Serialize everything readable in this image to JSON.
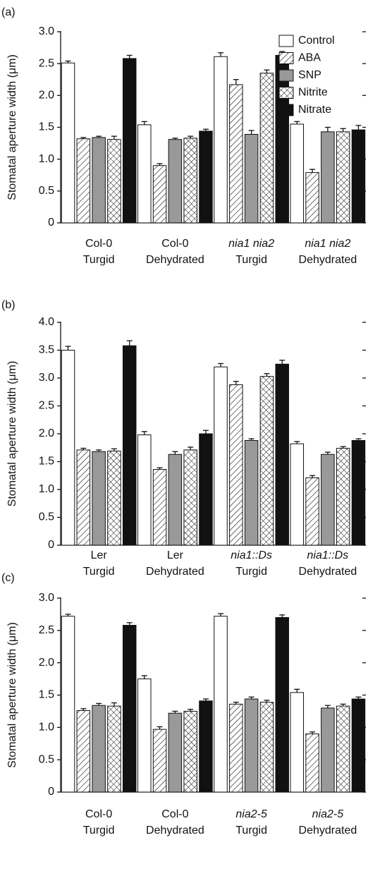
{
  "chart_data": [
    {
      "type": "bar",
      "panel_label": "(a)",
      "y_label": "Stomatal aperture width (μm)",
      "categories": [
        [
          "Col-0",
          "Turgid"
        ],
        [
          "Col-0",
          "Dehydrated"
        ],
        [
          "nia1 nia2",
          "Turgid"
        ],
        [
          "nia1 nia2",
          "Dehydrated"
        ]
      ],
      "ylim": [
        0,
        3
      ],
      "yticks": [
        0,
        0.5,
        {
          "value": 1,
          "label": "1.0"
        },
        1.5,
        {
          "value": 2,
          "label": "2.0"
        },
        2.5,
        {
          "value": 3,
          "label": "3.0"
        }
      ],
      "legend": "upper right",
      "series": [
        {
          "name": "Control",
          "color": "#ffffff",
          "pattern": "solid",
          "values": [
            2.51,
            1.54,
            2.61,
            1.55
          ],
          "errors": [
            0.03,
            0.05,
            0.06,
            0.04
          ]
        },
        {
          "name": "ABA",
          "color": "#ffffff",
          "pattern": "hatch",
          "values": [
            1.32,
            0.9,
            2.17,
            0.79
          ],
          "errors": [
            0.02,
            0.03,
            0.08,
            0.05
          ]
        },
        {
          "name": "SNP",
          "color": "#999999",
          "pattern": "solid",
          "values": [
            1.34,
            1.31,
            1.39,
            1.43
          ],
          "errors": [
            0.02,
            0.02,
            0.06,
            0.07
          ]
        },
        {
          "name": "Nitrite",
          "color": "#ffffff",
          "pattern": "cross",
          "values": [
            1.31,
            1.33,
            2.35,
            1.43
          ],
          "errors": [
            0.05,
            0.03,
            0.05,
            0.05
          ]
        },
        {
          "name": "Nitrate",
          "color": "#111111",
          "pattern": "solid",
          "values": [
            2.58,
            1.44,
            2.63,
            1.46
          ],
          "errors": [
            0.05,
            0.03,
            0.06,
            0.07
          ]
        }
      ]
    },
    {
      "type": "bar",
      "panel_label": "(b)",
      "y_label": "Stomatal aperture width (μm)",
      "categories": [
        [
          "Ler",
          "Turgid"
        ],
        [
          "Ler",
          "Dehydrated"
        ],
        [
          "nia1::Ds",
          "Turgid"
        ],
        [
          "nia1::Ds",
          "Dehydrated"
        ]
      ],
      "ylim": [
        0,
        4
      ],
      "yticks": [
        0,
        0.5,
        {
          "value": 1,
          "label": "1.0"
        },
        1.5,
        {
          "value": 2,
          "label": "2.0"
        },
        2.5,
        {
          "value": 3,
          "label": "3.0"
        },
        3.5,
        {
          "value": 4,
          "label": "4.0"
        }
      ],
      "series": [
        {
          "color": "#ffffff",
          "pattern": "solid",
          "values": [
            3.5,
            1.98,
            3.2,
            1.82
          ],
          "errors": [
            0.07,
            0.06,
            0.06,
            0.04
          ]
        },
        {
          "color": "#ffffff",
          "pattern": "hatch",
          "values": [
            1.71,
            1.36,
            2.88,
            1.21
          ],
          "errors": [
            0.03,
            0.03,
            0.06,
            0.04
          ]
        },
        {
          "color": "#999999",
          "pattern": "solid",
          "values": [
            1.68,
            1.63,
            1.88,
            1.63
          ],
          "errors": [
            0.03,
            0.05,
            0.03,
            0.04
          ]
        },
        {
          "color": "#ffffff",
          "pattern": "cross",
          "values": [
            1.69,
            1.71,
            3.03,
            1.74
          ],
          "errors": [
            0.04,
            0.05,
            0.05,
            0.03
          ]
        },
        {
          "color": "#111111",
          "pattern": "solid",
          "values": [
            3.58,
            2.0,
            3.25,
            1.88
          ],
          "errors": [
            0.09,
            0.06,
            0.07,
            0.03
          ]
        }
      ]
    },
    {
      "type": "bar",
      "panel_label": "(c)",
      "y_label": "Stomatal aperture width (μm)",
      "categories": [
        [
          "Col-0",
          "Turgid"
        ],
        [
          "Col-0",
          "Dehydrated"
        ],
        [
          "nia2-5",
          "Turgid"
        ],
        [
          "nia2-5",
          "Dehydrated"
        ]
      ],
      "ylim": [
        0,
        3
      ],
      "yticks": [
        0,
        0.5,
        {
          "value": 1,
          "label": "1.0"
        },
        1.5,
        {
          "value": 2,
          "label": "2.0"
        },
        2.5,
        {
          "value": 3,
          "label": "3.0"
        }
      ],
      "series": [
        {
          "color": "#ffffff",
          "pattern": "solid",
          "values": [
            2.72,
            1.75,
            2.72,
            1.54
          ],
          "errors": [
            0.03,
            0.05,
            0.04,
            0.05
          ]
        },
        {
          "color": "#ffffff",
          "pattern": "hatch",
          "values": [
            1.26,
            0.97,
            1.36,
            0.9
          ],
          "errors": [
            0.03,
            0.04,
            0.03,
            0.03
          ]
        },
        {
          "color": "#999999",
          "pattern": "solid",
          "values": [
            1.34,
            1.22,
            1.44,
            1.3
          ],
          "errors": [
            0.03,
            0.03,
            0.03,
            0.04
          ]
        },
        {
          "color": "#ffffff",
          "pattern": "cross",
          "values": [
            1.33,
            1.25,
            1.39,
            1.33
          ],
          "errors": [
            0.05,
            0.03,
            0.03,
            0.03
          ]
        },
        {
          "color": "#111111",
          "pattern": "solid",
          "values": [
            2.58,
            1.41,
            2.7,
            1.44
          ],
          "errors": [
            0.04,
            0.03,
            0.04,
            0.03
          ]
        }
      ]
    }
  ]
}
